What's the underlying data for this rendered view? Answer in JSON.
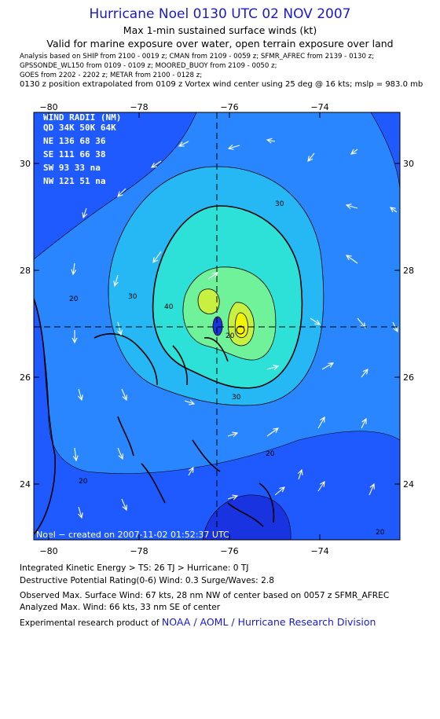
{
  "header": {
    "title": "Hurricane Noel 0130 UTC 02 NOV 2007",
    "subtitle1": "Max 1-min sustained surface winds (kt)",
    "subtitle2": "Valid for marine exposure over water, open terrain exposure over land"
  },
  "analysis_notes": [
    "Analysis based on   SHIP from 2100 - 0019 z;   CMAN from 2109 - 0059 z;   SFMR_AFREC from 2139 - 0130 z;",
    "GPSSONDE_WL150 from 0109 - 0109 z;   MOORED_BUOY from 2109 - 0050 z;",
    "GOES from 2202 - 2202 z;   METAR from 2100 - 0128 z;"
  ],
  "position_note": "0130 z position extrapolated from 0109 z Vortex wind center using 25 deg @ 16 kts; mslp = 983.0 mb",
  "map": {
    "lon_ticks": [
      "−80",
      "−78",
      "−76",
      "−74"
    ],
    "lat_ticks": [
      "30",
      "28",
      "26",
      "24"
    ],
    "lon_values": [
      -80,
      -78,
      -76,
      -74
    ],
    "lat_values": [
      30,
      28,
      26,
      24
    ],
    "contour_labels": [
      "30",
      "20",
      "30",
      "40",
      "30",
      "20",
      "20",
      "20",
      "20"
    ],
    "wind_radii": {
      "title": "WIND RADII (NM)",
      "header": "QD 34K 50K 64K",
      "rows": [
        "NE  136  68  36",
        "SE  111  66  38",
        "SW  93   33  na",
        "NW  121  51  na"
      ]
    },
    "credit": "Noel − created on 2007-11-02 01:52:37 UTC",
    "colors": {
      "ocean_low": "#1e5aff",
      "band_20": "#2a86ff",
      "band_30": "#25b8f5",
      "band_40": "#2de0d8",
      "band_50": "#70f29a",
      "band_60": "#c8f040",
      "peak": "#f4f400",
      "weak": "#1a33e0"
    }
  },
  "footer": {
    "ike": "Integrated Kinetic Energy > TS: 26 TJ   > Hurricane: 0 TJ",
    "dpr": "Destructive Potential Rating(0-6)   Wind: 0.3 Surge/Waves: 2.8",
    "observed": "Observed Max. Surface Wind: 67 kts, 28 nm NW of center based on 0057 z SFMR_AFREC",
    "analyzed": "Analyzed Max. Wind: 66 kts, 33 nm SE of center",
    "product_prefix": "Experimental research product of",
    "product_link": "NOAA / AOML / Hurricane Research Division"
  }
}
